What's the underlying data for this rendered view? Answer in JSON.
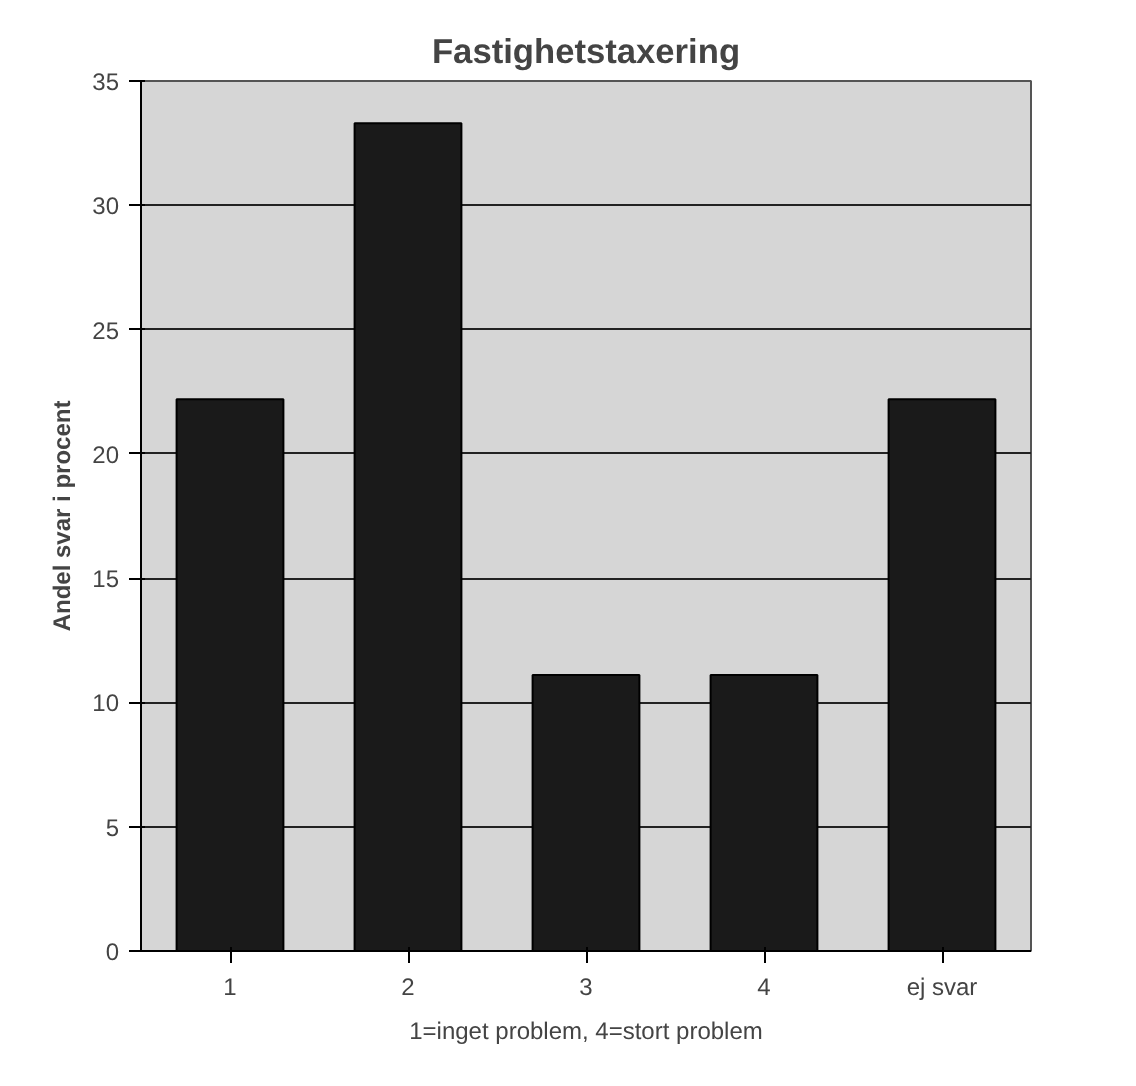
{
  "chart_data": {
    "type": "bar",
    "title": "Fastighetstaxering",
    "xlabel": "1=inget problem, 4=stort problem",
    "ylabel": "Andel svar i procent",
    "categories": [
      "1",
      "2",
      "3",
      "4",
      "ej svar"
    ],
    "values": [
      22.2,
      33.3,
      11.1,
      11.1,
      22.2
    ],
    "color": "#1a1a1a",
    "ylim": [
      0,
      35
    ],
    "yticks": [
      0,
      5,
      10,
      15,
      20,
      25,
      30,
      35
    ],
    "grid": "y"
  }
}
